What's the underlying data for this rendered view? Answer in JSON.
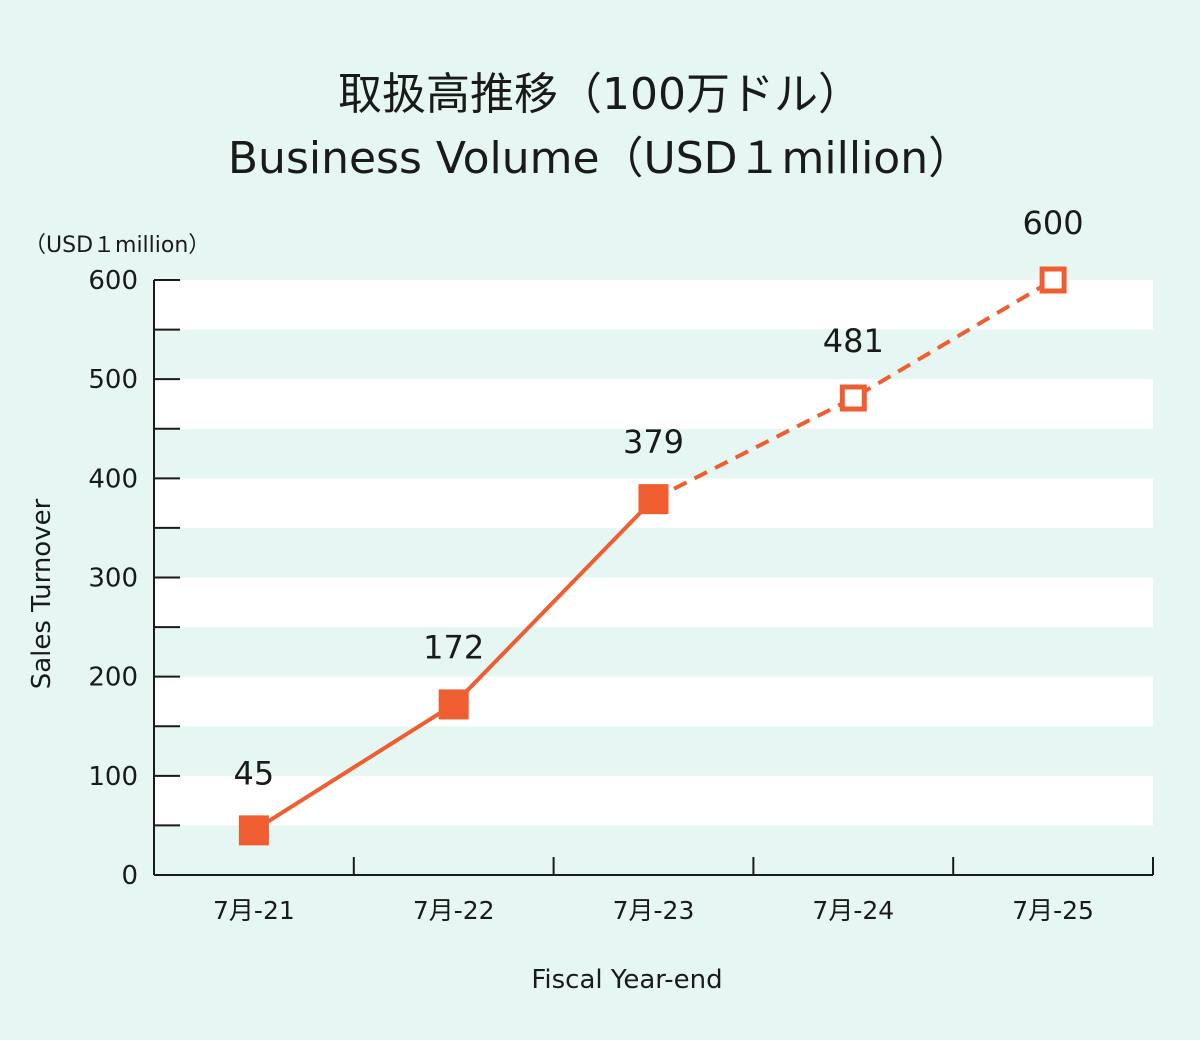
{
  "chart_data": {
    "type": "line",
    "title": "取扱高推移（100万ドル）",
    "subtitle": "Business Volume（USD１million）",
    "unit_label": "（USD１million）",
    "ylabel": "Sales Turnover",
    "xlabel": "Fiscal Year-end",
    "categories": [
      "7月-21",
      "7月-22",
      "7月-23",
      "7月-24",
      "7月-25"
    ],
    "values": [
      45,
      172,
      379,
      481,
      600
    ],
    "data_labels": [
      "45",
      "172",
      "379",
      "481",
      "600"
    ],
    "actual_count": 3,
    "segments": [
      {
        "from": 0,
        "to": 2,
        "style": "solid"
      },
      {
        "from": 2,
        "to": 4,
        "style": "dashed"
      }
    ],
    "markers": [
      "filled",
      "filled",
      "filled",
      "hollow",
      "hollow"
    ],
    "ylim": [
      0,
      600
    ],
    "yticks": [
      0,
      100,
      200,
      300,
      400,
      500,
      600
    ],
    "ytick_labels": [
      "0",
      "100",
      "200",
      "300",
      "400",
      "500",
      "600"
    ],
    "grid": "alternating-bands",
    "colors": {
      "background": "#e6f7f3",
      "band": "#ffffff",
      "series": "#ee5e30",
      "axis": "#1a1a1a"
    }
  }
}
